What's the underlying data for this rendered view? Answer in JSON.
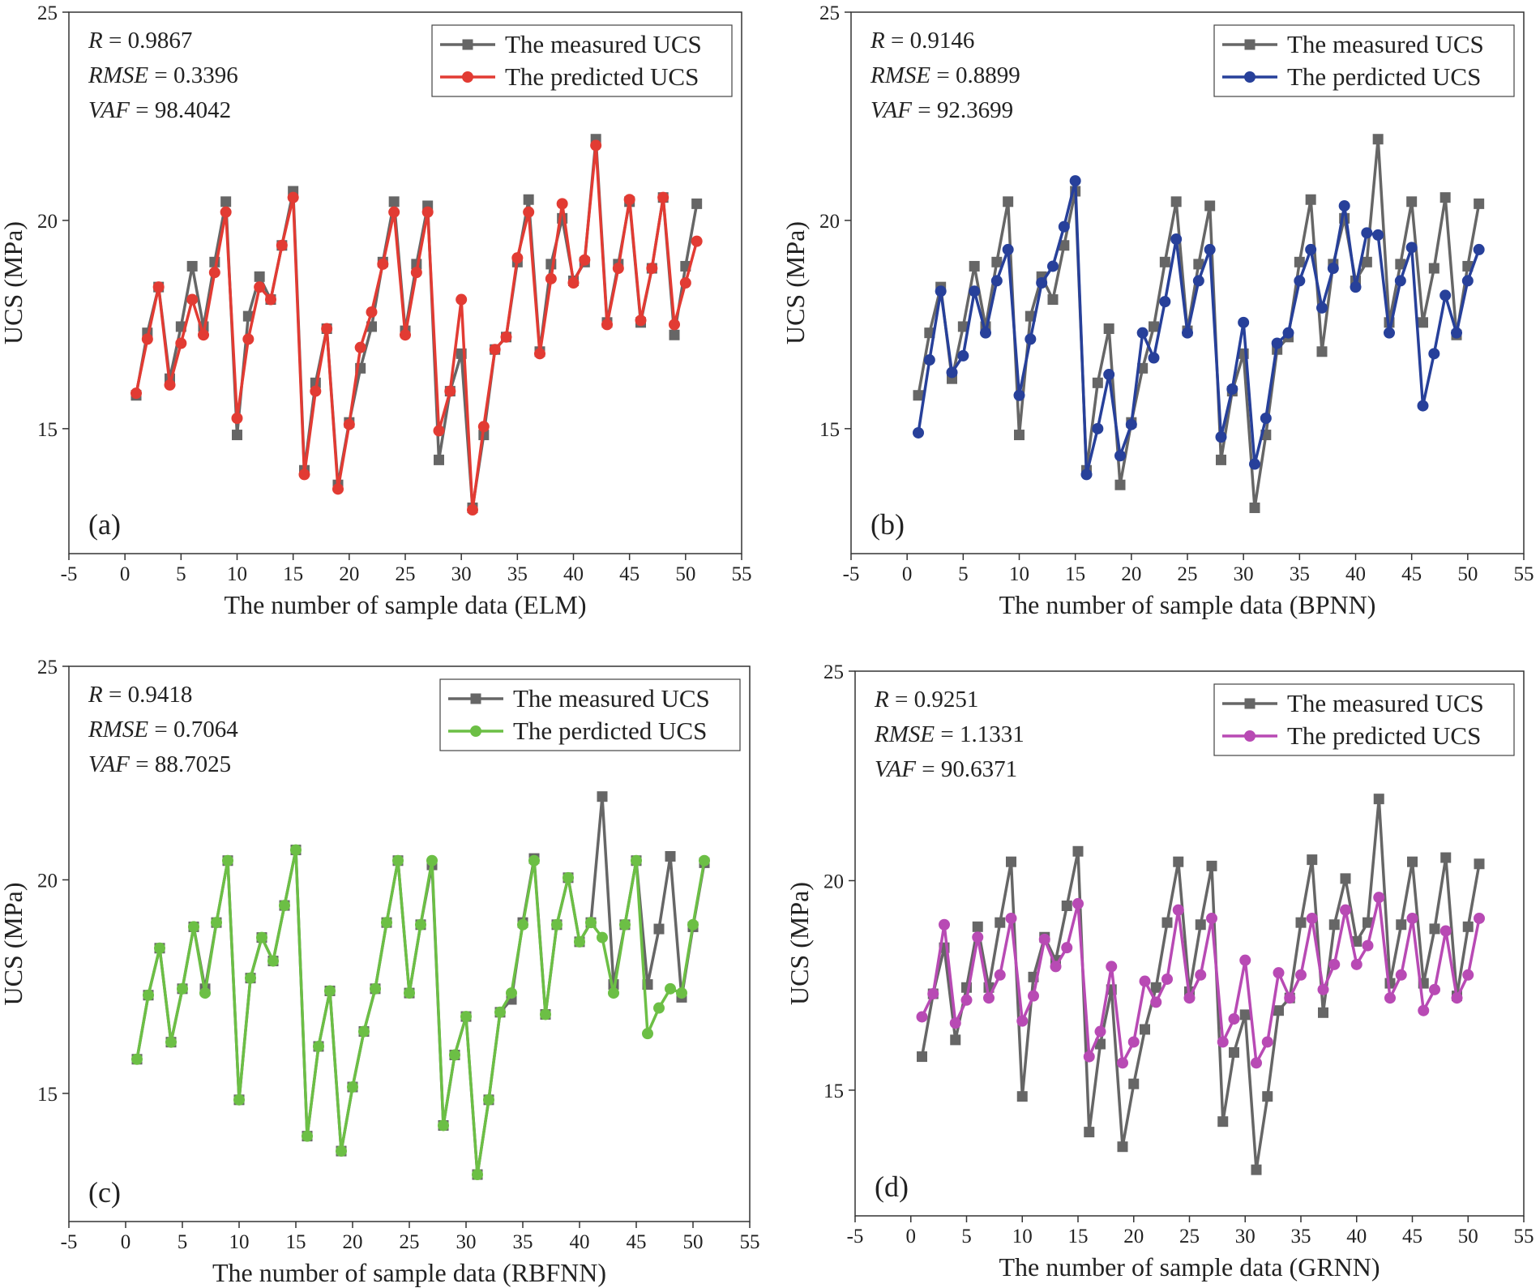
{
  "figure": {
    "colors": {
      "measured": "#666666",
      "elm": "#e23b33",
      "bpnn": "#27409a",
      "rbfnn": "#6cbf45",
      "grnn": "#b84ab4"
    }
  },
  "chart_data": [
    {
      "type": "line",
      "panel": "(a)",
      "xlabel": "The number of sample data (ELM)",
      "ylabel": "UCS (MPa)",
      "xlim": [
        -5,
        55
      ],
      "ylim": [
        12,
        25
      ],
      "xticks": [
        "-5",
        "0",
        "5",
        "10",
        "15",
        "20",
        "25",
        "30",
        "35",
        "40",
        "45",
        "50",
        "55"
      ],
      "yticks": [
        "15",
        "20",
        "25"
      ],
      "stats": {
        "r": "R = 0.9867",
        "rmse": "RMSE = 0.3396",
        "vaf": "VAF = 98.4042"
      },
      "stats_lines": [
        {
          "name": "R",
          "value": "= 0.9867"
        },
        {
          "name": "RMSE",
          "value": "= 0.3396"
        },
        {
          "name": "VAF",
          "value": "= 98.4042"
        }
      ],
      "legend": [
        "The measured UCS",
        "The predicted UCS"
      ],
      "x": [
        1,
        2,
        3,
        4,
        5,
        6,
        7,
        8,
        9,
        10,
        11,
        12,
        13,
        14,
        15,
        16,
        17,
        18,
        19,
        20,
        21,
        22,
        23,
        24,
        25,
        26,
        27,
        28,
        29,
        30,
        31,
        32,
        33,
        34,
        35,
        36,
        37,
        38,
        39,
        40,
        41,
        42,
        43,
        44,
        45,
        46,
        47,
        48,
        49,
        50,
        51
      ],
      "series": [
        {
          "name": "The measured UCS",
          "marker": "square",
          "values": [
            15.8,
            17.3,
            18.4,
            16.2,
            17.45,
            18.9,
            17.45,
            19.0,
            20.45,
            14.85,
            17.7,
            18.65,
            18.1,
            19.4,
            20.7,
            14.0,
            16.1,
            17.4,
            13.65,
            15.15,
            16.45,
            17.45,
            19.0,
            20.45,
            17.35,
            18.95,
            20.35,
            14.25,
            15.9,
            16.8,
            13.1,
            14.85,
            16.9,
            17.2,
            19.0,
            20.5,
            16.85,
            18.95,
            20.05,
            18.55,
            19.0,
            21.95,
            17.55,
            18.95,
            20.45,
            17.55,
            18.85,
            20.55,
            17.25,
            18.9,
            20.4
          ]
        },
        {
          "name": "The predicted UCS",
          "marker": "circle",
          "values": [
            15.85,
            17.15,
            18.4,
            16.05,
            17.05,
            18.1,
            17.25,
            18.75,
            20.2,
            15.25,
            17.15,
            18.4,
            18.1,
            19.4,
            20.55,
            13.9,
            15.9,
            17.4,
            13.55,
            15.1,
            16.95,
            17.8,
            18.95,
            20.2,
            17.25,
            18.75,
            20.2,
            14.95,
            15.9,
            18.1,
            13.05,
            15.05,
            16.9,
            17.2,
            19.1,
            20.2,
            16.8,
            18.6,
            20.4,
            18.5,
            19.05,
            21.8,
            17.5,
            18.85,
            20.5,
            17.6,
            18.85,
            20.55,
            17.5,
            18.5,
            19.5
          ]
        }
      ]
    },
    {
      "type": "line",
      "panel": "(b)",
      "xlabel": "The number of sample data (BPNN)",
      "ylabel": "UCS (MPa)",
      "xlim": [
        -5,
        55
      ],
      "ylim": [
        12,
        25
      ],
      "xticks": [
        "-5",
        "0",
        "5",
        "10",
        "15",
        "20",
        "25",
        "30",
        "35",
        "40",
        "45",
        "50",
        "55"
      ],
      "yticks": [
        "15",
        "20",
        "25"
      ],
      "stats": {
        "r": "R = 0.9146",
        "rmse": "RMSE = 0.8899",
        "vaf": "VAF = 92.3699"
      },
      "stats_lines": [
        {
          "name": "R",
          "value": "= 0.9146"
        },
        {
          "name": "RMSE",
          "value": "= 0.8899"
        },
        {
          "name": "VAF",
          "value": "= 92.3699"
        }
      ],
      "legend": [
        "The measured UCS",
        "The perdicted UCS"
      ],
      "x": [
        1,
        2,
        3,
        4,
        5,
        6,
        7,
        8,
        9,
        10,
        11,
        12,
        13,
        14,
        15,
        16,
        17,
        18,
        19,
        20,
        21,
        22,
        23,
        24,
        25,
        26,
        27,
        28,
        29,
        30,
        31,
        32,
        33,
        34,
        35,
        36,
        37,
        38,
        39,
        40,
        41,
        42,
        43,
        44,
        45,
        46,
        47,
        48,
        49,
        50,
        51
      ],
      "series": [
        {
          "name": "The measured UCS",
          "marker": "square",
          "values": [
            15.8,
            17.3,
            18.4,
            16.2,
            17.45,
            18.9,
            17.45,
            19.0,
            20.45,
            14.85,
            17.7,
            18.65,
            18.1,
            19.4,
            20.7,
            14.0,
            16.1,
            17.4,
            13.65,
            15.15,
            16.45,
            17.45,
            19.0,
            20.45,
            17.35,
            18.95,
            20.35,
            14.25,
            15.9,
            16.8,
            13.1,
            14.85,
            16.9,
            17.2,
            19.0,
            20.5,
            16.85,
            18.95,
            20.05,
            18.55,
            19.0,
            21.95,
            17.55,
            18.95,
            20.45,
            17.55,
            18.85,
            20.55,
            17.25,
            18.9,
            20.4
          ]
        },
        {
          "name": "The perdicted UCS",
          "marker": "circle",
          "values": [
            14.9,
            16.65,
            18.3,
            16.35,
            16.75,
            18.3,
            17.3,
            18.55,
            19.3,
            15.8,
            17.15,
            18.5,
            18.9,
            19.85,
            20.95,
            13.9,
            15.0,
            16.3,
            14.35,
            15.1,
            17.3,
            16.7,
            18.05,
            19.55,
            17.3,
            18.55,
            19.3,
            14.8,
            15.95,
            17.55,
            14.15,
            15.25,
            17.05,
            17.3,
            18.55,
            19.3,
            17.9,
            18.85,
            20.35,
            18.4,
            19.7,
            19.65,
            17.3,
            18.55,
            19.35,
            15.55,
            16.8,
            18.2,
            17.3,
            18.55,
            19.3
          ]
        }
      ]
    },
    {
      "type": "line",
      "panel": "(c)",
      "xlabel": "The number of sample data (RBFNN)",
      "ylabel": "UCS (MPa)",
      "xlim": [
        -5,
        55
      ],
      "ylim": [
        12,
        25
      ],
      "xticks": [
        "-5",
        "0",
        "5",
        "10",
        "15",
        "20",
        "25",
        "30",
        "35",
        "40",
        "45",
        "50",
        "55"
      ],
      "yticks": [
        "15",
        "20",
        "25"
      ],
      "stats": {
        "r": "R = 0.9418",
        "rmse": "RMSE = 0.7064",
        "vaf": "VAF = 88.7025"
      },
      "stats_lines": [
        {
          "name": "R",
          "value": "= 0.9418"
        },
        {
          "name": "RMSE",
          "value": "= 0.7064"
        },
        {
          "name": "VAF",
          "value": "= 88.7025"
        }
      ],
      "legend": [
        "The measured UCS",
        "The perdicted UCS"
      ],
      "x": [
        1,
        2,
        3,
        4,
        5,
        6,
        7,
        8,
        9,
        10,
        11,
        12,
        13,
        14,
        15,
        16,
        17,
        18,
        19,
        20,
        21,
        22,
        23,
        24,
        25,
        26,
        27,
        28,
        29,
        30,
        31,
        32,
        33,
        34,
        35,
        36,
        37,
        38,
        39,
        40,
        41,
        42,
        43,
        44,
        45,
        46,
        47,
        48,
        49,
        50,
        51
      ],
      "series": [
        {
          "name": "The measured UCS",
          "marker": "square",
          "values": [
            15.8,
            17.3,
            18.4,
            16.2,
            17.45,
            18.9,
            17.45,
            19.0,
            20.45,
            14.85,
            17.7,
            18.65,
            18.1,
            19.4,
            20.7,
            14.0,
            16.1,
            17.4,
            13.65,
            15.15,
            16.45,
            17.45,
            19.0,
            20.45,
            17.35,
            18.95,
            20.35,
            14.25,
            15.9,
            16.8,
            13.1,
            14.85,
            16.9,
            17.2,
            19.0,
            20.5,
            16.85,
            18.95,
            20.05,
            18.55,
            19.0,
            21.95,
            17.55,
            18.95,
            20.45,
            17.55,
            18.85,
            20.55,
            17.25,
            18.9,
            20.4
          ]
        },
        {
          "name": "The perdicted UCS",
          "marker": "circle",
          "values": [
            15.8,
            17.3,
            18.4,
            16.2,
            17.45,
            18.9,
            17.35,
            19.0,
            20.45,
            14.85,
            17.7,
            18.65,
            18.1,
            19.4,
            20.7,
            14.0,
            16.1,
            17.4,
            13.65,
            15.15,
            16.45,
            17.45,
            19.0,
            20.45,
            17.35,
            18.95,
            20.45,
            14.25,
            15.9,
            16.8,
            13.1,
            14.85,
            16.9,
            17.35,
            18.95,
            20.45,
            16.85,
            18.95,
            20.05,
            18.55,
            19.0,
            18.65,
            17.35,
            18.95,
            20.45,
            16.4,
            17.0,
            17.45,
            17.35,
            18.95,
            20.45
          ]
        }
      ]
    },
    {
      "type": "line",
      "panel": "(d)",
      "xlabel": "The number of sample data (GRNN)",
      "ylabel": "UCS (MPa)",
      "xlim": [
        -5,
        55
      ],
      "ylim": [
        12,
        25
      ],
      "xticks": [
        "-5",
        "0",
        "5",
        "10",
        "15",
        "20",
        "25",
        "30",
        "35",
        "40",
        "45",
        "50",
        "55"
      ],
      "yticks": [
        "15",
        "20",
        "25"
      ],
      "stats": {
        "r": "R = 0.9251",
        "rmse": "RMSE = 1.1331",
        "vaf": "VAF = 90.6371"
      },
      "stats_lines": [
        {
          "name": "R",
          "value": "= 0.9251"
        },
        {
          "name": "RMSE",
          "value": "= 1.1331"
        },
        {
          "name": "VAF",
          "value": "= 90.6371"
        }
      ],
      "legend": [
        "The measured UCS",
        "The predicted UCS"
      ],
      "x": [
        1,
        2,
        3,
        4,
        5,
        6,
        7,
        8,
        9,
        10,
        11,
        12,
        13,
        14,
        15,
        16,
        17,
        18,
        19,
        20,
        21,
        22,
        23,
        24,
        25,
        26,
        27,
        28,
        29,
        30,
        31,
        32,
        33,
        34,
        35,
        36,
        37,
        38,
        39,
        40,
        41,
        42,
        43,
        44,
        45,
        46,
        47,
        48,
        49,
        50,
        51
      ],
      "series": [
        {
          "name": "The measured UCS",
          "marker": "square",
          "values": [
            15.8,
            17.3,
            18.4,
            16.2,
            17.45,
            18.9,
            17.45,
            19.0,
            20.45,
            14.85,
            17.7,
            18.65,
            18.1,
            19.4,
            20.7,
            14.0,
            16.1,
            17.4,
            13.65,
            15.15,
            16.45,
            17.45,
            19.0,
            20.45,
            17.35,
            18.95,
            20.35,
            14.25,
            15.9,
            16.8,
            13.1,
            14.85,
            16.9,
            17.2,
            19.0,
            20.5,
            16.85,
            18.95,
            20.05,
            18.55,
            19.0,
            21.95,
            17.55,
            18.95,
            20.45,
            17.55,
            18.85,
            20.55,
            17.25,
            18.9,
            20.4
          ]
        },
        {
          "name": "The predicted UCS",
          "marker": "circle",
          "values": [
            16.75,
            17.3,
            18.95,
            16.6,
            17.15,
            18.65,
            17.2,
            17.75,
            19.1,
            16.65,
            17.25,
            18.6,
            17.95,
            18.4,
            19.45,
            15.8,
            16.4,
            17.95,
            15.65,
            16.15,
            17.6,
            17.1,
            17.65,
            19.3,
            17.2,
            17.75,
            19.1,
            16.15,
            16.7,
            18.1,
            15.65,
            16.15,
            17.8,
            17.2,
            17.75,
            19.1,
            17.4,
            18.0,
            19.3,
            18.0,
            18.45,
            19.6,
            17.2,
            17.75,
            19.1,
            16.9,
            17.4,
            18.8,
            17.2,
            17.75,
            19.1
          ]
        }
      ]
    }
  ]
}
